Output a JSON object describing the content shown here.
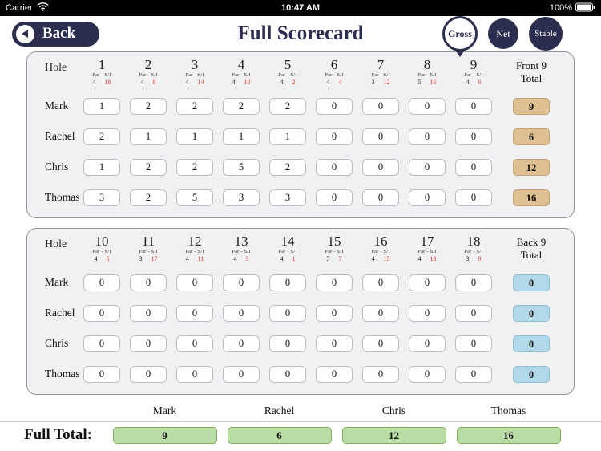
{
  "status_bar": {
    "carrier": "Carrier",
    "time": "10:47 AM",
    "battery": "100%"
  },
  "header": {
    "back_label": "Back",
    "title": "Full Scorecard",
    "gross_label": "Gross",
    "net_label": "Net",
    "stable_label": "Stable"
  },
  "labels": {
    "hole": "Hole",
    "par_si": "Par - S/I"
  },
  "front9": {
    "total_label": "Front 9 Total",
    "holes": [
      {
        "number": "1",
        "par": "4",
        "si": "18"
      },
      {
        "number": "2",
        "par": "4",
        "si": "8"
      },
      {
        "number": "3",
        "par": "4",
        "si": "14"
      },
      {
        "number": "4",
        "par": "4",
        "si": "10"
      },
      {
        "number": "5",
        "par": "4",
        "si": "2"
      },
      {
        "number": "6",
        "par": "4",
        "si": "4"
      },
      {
        "number": "7",
        "par": "3",
        "si": "12"
      },
      {
        "number": "8",
        "par": "5",
        "si": "16"
      },
      {
        "number": "9",
        "par": "4",
        "si": "6"
      }
    ],
    "players": [
      {
        "name": "Mark",
        "scores": [
          "1",
          "2",
          "2",
          "2",
          "2",
          "0",
          "0",
          "0",
          "0"
        ],
        "total": "9"
      },
      {
        "name": "Rachel",
        "scores": [
          "2",
          "1",
          "1",
          "1",
          "1",
          "0",
          "0",
          "0",
          "0"
        ],
        "total": "6"
      },
      {
        "name": "Chris",
        "scores": [
          "1",
          "2",
          "2",
          "5",
          "2",
          "0",
          "0",
          "0",
          "0"
        ],
        "total": "12"
      },
      {
        "name": "Thomas",
        "scores": [
          "3",
          "2",
          "5",
          "3",
          "3",
          "0",
          "0",
          "0",
          "0"
        ],
        "total": "16"
      }
    ]
  },
  "back9": {
    "total_label": "Back 9 Total",
    "holes": [
      {
        "number": "10",
        "par": "4",
        "si": "5"
      },
      {
        "number": "11",
        "par": "3",
        "si": "17"
      },
      {
        "number": "12",
        "par": "4",
        "si": "11"
      },
      {
        "number": "13",
        "par": "4",
        "si": "3"
      },
      {
        "number": "14",
        "par": "4",
        "si": "1"
      },
      {
        "number": "15",
        "par": "5",
        "si": "7"
      },
      {
        "number": "16",
        "par": "4",
        "si": "15"
      },
      {
        "number": "17",
        "par": "4",
        "si": "13"
      },
      {
        "number": "18",
        "par": "3",
        "si": "9"
      }
    ],
    "players": [
      {
        "name": "Mark",
        "scores": [
          "0",
          "0",
          "0",
          "0",
          "0",
          "0",
          "0",
          "0",
          "0"
        ],
        "total": "0"
      },
      {
        "name": "Rachel",
        "scores": [
          "0",
          "0",
          "0",
          "0",
          "0",
          "0",
          "0",
          "0",
          "0"
        ],
        "total": "0"
      },
      {
        "name": "Chris",
        "scores": [
          "0",
          "0",
          "0",
          "0",
          "0",
          "0",
          "0",
          "0",
          "0"
        ],
        "total": "0"
      },
      {
        "name": "Thomas",
        "scores": [
          "0",
          "0",
          "0",
          "0",
          "0",
          "0",
          "0",
          "0",
          "0"
        ],
        "total": "0"
      }
    ]
  },
  "footer": {
    "label": "Full Total:",
    "players": [
      {
        "name": "Mark",
        "total": "9"
      },
      {
        "name": "Rachel",
        "total": "6"
      },
      {
        "name": "Chris",
        "total": "12"
      },
      {
        "name": "Thomas",
        "total": "16"
      }
    ]
  },
  "colors": {
    "navy": "#2b2e4e",
    "si_red": "#e03a2f",
    "panel_bg": "#f1f1f3",
    "front_total_bg": "#dfc093",
    "back_total_bg": "#b1d9e9",
    "full_total_bg": "#b9dda4"
  }
}
